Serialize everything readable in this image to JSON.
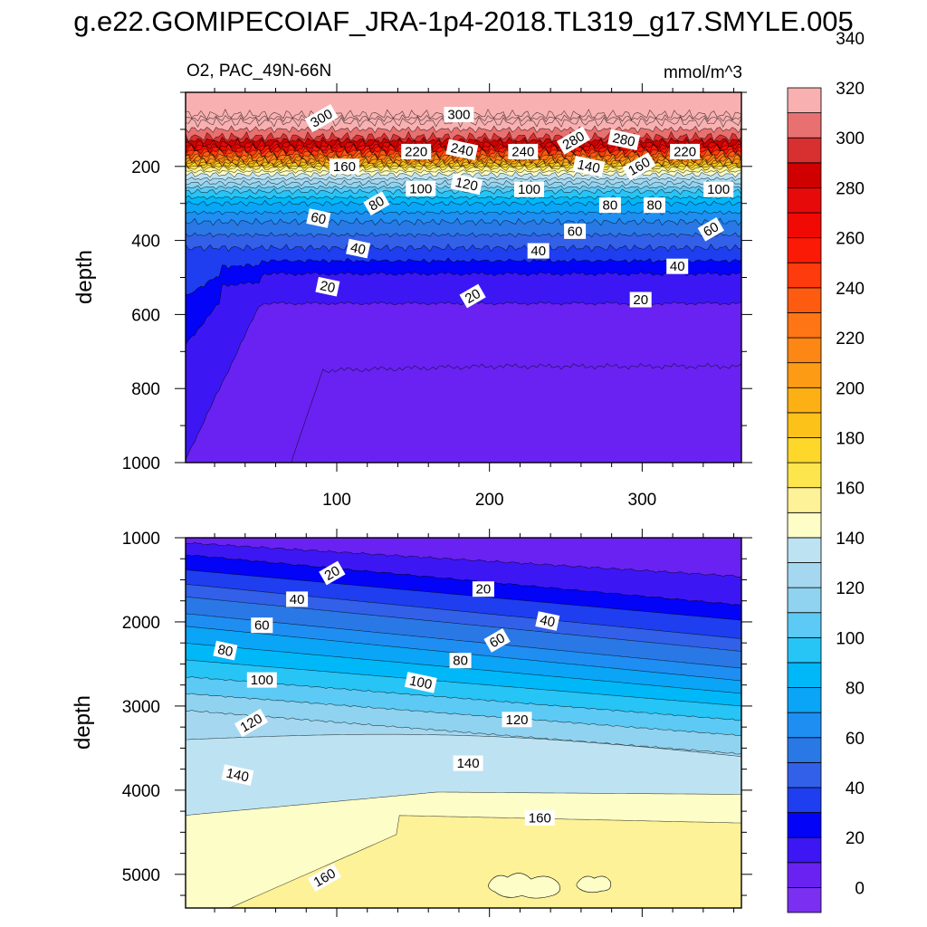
{
  "title": "g.e22.GOMIPECOIAF_JRA-1p4-2018.TL319_g17.SMYLE.005",
  "chart_data": [
    {
      "type": "heatmap",
      "panel": "upper",
      "left_title": "O2, PAC_49N-66N",
      "right_title": "mmol/m^3",
      "xlabel": "",
      "ylabel": "depth",
      "xlim": [
        1,
        365
      ],
      "ylim": [
        0,
        1000
      ],
      "y_reversed": true,
      "x_ticks": [
        100,
        200,
        300
      ],
      "y_ticks": [
        200,
        400,
        600,
        800,
        1000
      ],
      "contour_labels": [
        {
          "value": 300,
          "x": 90,
          "y": 70
        },
        {
          "value": 300,
          "x": 180,
          "y": 60
        },
        {
          "value": 220,
          "x": 152,
          "y": 160
        },
        {
          "value": 240,
          "x": 182,
          "y": 155
        },
        {
          "value": 240,
          "x": 222,
          "y": 160
        },
        {
          "value": 280,
          "x": 255,
          "y": 130
        },
        {
          "value": 280,
          "x": 288,
          "y": 128
        },
        {
          "value": 220,
          "x": 328,
          "y": 160
        },
        {
          "value": 160,
          "x": 105,
          "y": 200
        },
        {
          "value": 140,
          "x": 265,
          "y": 200
        },
        {
          "value": 160,
          "x": 298,
          "y": 200
        },
        {
          "value": 100,
          "x": 155,
          "y": 260
        },
        {
          "value": 120,
          "x": 185,
          "y": 248
        },
        {
          "value": 100,
          "x": 226,
          "y": 262
        },
        {
          "value": 100,
          "x": 350,
          "y": 262
        },
        {
          "value": 80,
          "x": 126,
          "y": 300
        },
        {
          "value": 80,
          "x": 279,
          "y": 305
        },
        {
          "value": 80,
          "x": 308,
          "y": 305
        },
        {
          "value": 60,
          "x": 88,
          "y": 340
        },
        {
          "value": 60,
          "x": 256,
          "y": 375
        },
        {
          "value": 60,
          "x": 345,
          "y": 370
        },
        {
          "value": 40,
          "x": 114,
          "y": 422
        },
        {
          "value": 40,
          "x": 232,
          "y": 428
        },
        {
          "value": 40,
          "x": 323,
          "y": 470
        },
        {
          "value": 20,
          "x": 94,
          "y": 525
        },
        {
          "value": 20,
          "x": 189,
          "y": 550
        },
        {
          "value": 20,
          "x": 299,
          "y": 560
        }
      ]
    },
    {
      "type": "heatmap",
      "panel": "lower",
      "xlabel": "",
      "ylabel": "depth",
      "xlim": [
        1,
        365
      ],
      "ylim": [
        1000,
        5400
      ],
      "y_reversed": true,
      "x_ticks": [
        100,
        200,
        300
      ],
      "y_ticks": [
        1000,
        2000,
        3000,
        4000,
        5000
      ],
      "contour_labels": [
        {
          "value": 20,
          "x": 97,
          "y": 1420
        },
        {
          "value": 20,
          "x": 196,
          "y": 1610
        },
        {
          "value": 40,
          "x": 74,
          "y": 1730
        },
        {
          "value": 40,
          "x": 238,
          "y": 1990
        },
        {
          "value": 60,
          "x": 51,
          "y": 2040
        },
        {
          "value": 60,
          "x": 205,
          "y": 2220
        },
        {
          "value": 80,
          "x": 27,
          "y": 2340
        },
        {
          "value": 80,
          "x": 181,
          "y": 2460
        },
        {
          "value": 100,
          "x": 51,
          "y": 2690
        },
        {
          "value": 100,
          "x": 155,
          "y": 2720
        },
        {
          "value": 120,
          "x": 44,
          "y": 3200
        },
        {
          "value": 120,
          "x": 218,
          "y": 3160
        },
        {
          "value": 140,
          "x": 35,
          "y": 3820
        },
        {
          "value": 140,
          "x": 186,
          "y": 3680
        },
        {
          "value": 160,
          "x": 233,
          "y": 4330
        },
        {
          "value": 160,
          "x": 92,
          "y": 5040
        }
      ]
    }
  ],
  "colorbar": {
    "levels": [
      0,
      20,
      40,
      60,
      80,
      100,
      120,
      140,
      160,
      180,
      200,
      220,
      240,
      260,
      280,
      300,
      320,
      340
    ],
    "colors": [
      "#7b2ff0",
      "#6922f2",
      "#3c17f4",
      "#0303f8",
      "#1e3ef0",
      "#3360e8",
      "#2a78e6",
      "#1f8ef2",
      "#0aa5f6",
      "#00b8f8",
      "#27c4f6",
      "#5ccaf4",
      "#8fd3f0",
      "#a5d8f0",
      "#bde3f2",
      "#fdfdc8",
      "#fdf297",
      "#fde54e",
      "#fdd72a",
      "#fdc21a",
      "#fdb014",
      "#fd9c14",
      "#fd8714",
      "#fd7514",
      "#fd5b10",
      "#fd3b0c",
      "#fb1a06",
      "#f10a04",
      "#e60a0a",
      "#d00000",
      "#d83030",
      "#e97070",
      "#f8b0b0"
    ],
    "tick_labels": [
      "0",
      "20",
      "40",
      "60",
      "80",
      "100",
      "120",
      "140",
      "160",
      "180",
      "200",
      "220",
      "240",
      "260",
      "280",
      "300",
      "320",
      "340"
    ]
  }
}
